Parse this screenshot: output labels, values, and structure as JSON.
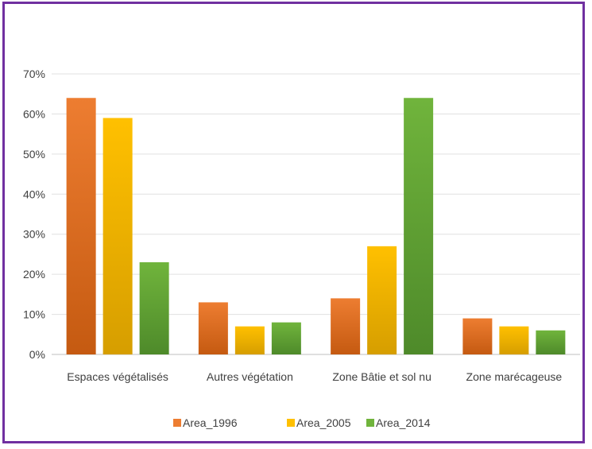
{
  "chart_data": {
    "type": "bar",
    "categories": [
      "Espaces végétalisés",
      "Autres végétation",
      "Zone Bâtie et sol nu",
      "Zone marécageuse"
    ],
    "series": [
      {
        "name": "Area_1996",
        "values": [
          64,
          13,
          14,
          9
        ],
        "color": "#ED7D31",
        "dark": "#C55A11"
      },
      {
        "name": "Area_2005",
        "values": [
          59,
          7,
          27,
          7
        ],
        "color": "#FFC000",
        "dark": "#D69E00"
      },
      {
        "name": "Area_2014",
        "values": [
          23,
          8,
          64,
          6
        ],
        "color": "#70B43C",
        "dark": "#4E8A2A"
      }
    ],
    "yticks": [
      "0%",
      "10%",
      "20%",
      "30%",
      "40%",
      "50%",
      "60%",
      "70%"
    ],
    "ylim": [
      0,
      70
    ],
    "grid": true,
    "legend_position": "bottom",
    "title": "",
    "xlabel": "",
    "ylabel": ""
  }
}
